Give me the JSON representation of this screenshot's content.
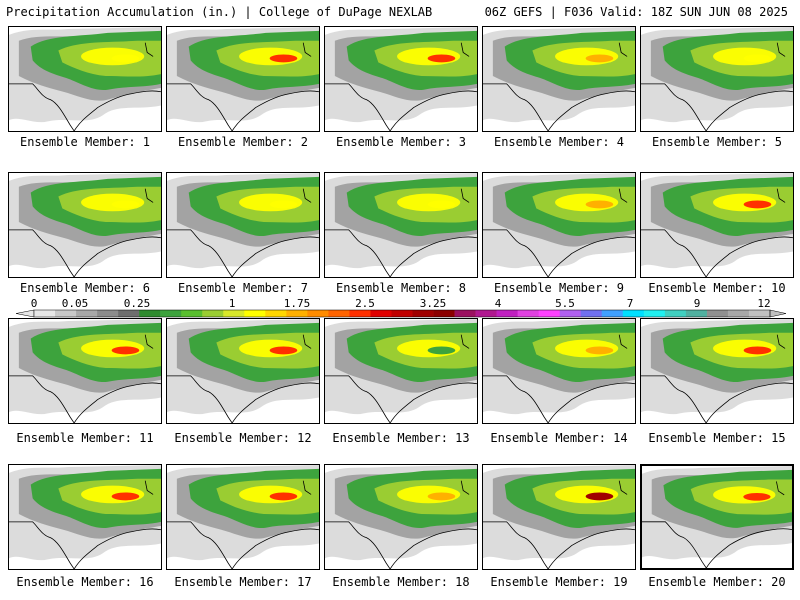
{
  "header": {
    "left": "Precipitation Accumulation (in.) | College of DuPage NEXLAB",
    "right": "06Z GEFS | F036 Valid: 18Z SUN JUN 08 2025"
  },
  "caption_prefix": "Ensemble Member: ",
  "selected_member": 20,
  "members": [
    {
      "label": "Ensemble Member: 1",
      "max": "yellow"
    },
    {
      "label": "Ensemble Member: 2",
      "max": "red"
    },
    {
      "label": "Ensemble Member: 3",
      "max": "red"
    },
    {
      "label": "Ensemble Member: 4",
      "max": "orange"
    },
    {
      "label": "Ensemble Member: 5",
      "max": "yellow"
    },
    {
      "label": "Ensemble Member: 6",
      "max": "yellow"
    },
    {
      "label": "Ensemble Member: 7",
      "max": "yellow"
    },
    {
      "label": "Ensemble Member: 8",
      "max": "yellow"
    },
    {
      "label": "Ensemble Member: 9",
      "max": "orange"
    },
    {
      "label": "Ensemble Member: 10",
      "max": "red"
    },
    {
      "label": "Ensemble Member: 11",
      "max": "red"
    },
    {
      "label": "Ensemble Member: 12",
      "max": "red"
    },
    {
      "label": "Ensemble Member: 13",
      "max": "green"
    },
    {
      "label": "Ensemble Member: 14",
      "max": "orange"
    },
    {
      "label": "Ensemble Member: 15",
      "max": "red"
    },
    {
      "label": "Ensemble Member: 16",
      "max": "red"
    },
    {
      "label": "Ensemble Member: 17",
      "max": "red"
    },
    {
      "label": "Ensemble Member: 18",
      "max": "orange"
    },
    {
      "label": "Ensemble Member: 19",
      "max": "darkred"
    },
    {
      "label": "Ensemble Member: 20",
      "max": "red"
    }
  ],
  "colorbar": {
    "labels": [
      "0",
      "0.05",
      "0.25",
      "1",
      "1.75",
      "2.5",
      "3.25",
      "4",
      "5.5",
      "7",
      "9",
      "12"
    ],
    "colors": [
      "#e6e6e6",
      "#c8c8c8",
      "#a8a8a8",
      "#8c8c8c",
      "#6e6e6e",
      "#2e8b2e",
      "#3da33d",
      "#59bf2e",
      "#9acd32",
      "#d8e82a",
      "#ffff00",
      "#ffd700",
      "#ffb000",
      "#ff8c00",
      "#ff6400",
      "#ff3000",
      "#e00000",
      "#c00000",
      "#a00000",
      "#8b0000",
      "#9b1060",
      "#b01890",
      "#c020c0",
      "#e040e0",
      "#ff40ff",
      "#b060f0",
      "#7070f0",
      "#40a0ff",
      "#00e0ff",
      "#20f0f0",
      "#40d0c0",
      "#50b0a0",
      "#909090",
      "#a8a8a8",
      "#c0c0c0"
    ]
  }
}
